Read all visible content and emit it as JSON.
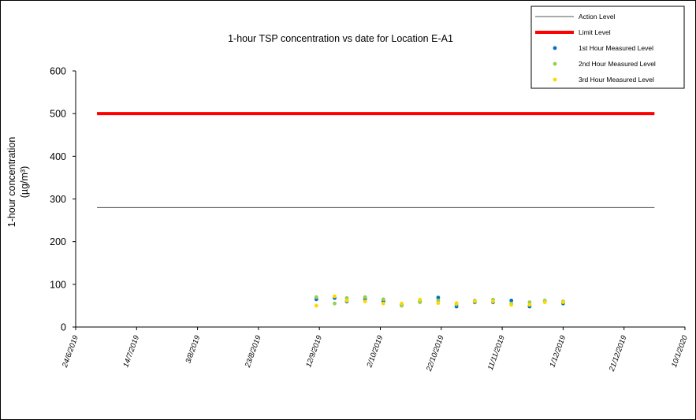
{
  "chart_data": {
    "type": "scatter",
    "title": "1-hour TSP concentration vs date for Location E-A1",
    "ylabel_line1": "1-hour concentration",
    "ylabel_line2": "(µg/m³)",
    "xlabel": "",
    "ylim": [
      0,
      600
    ],
    "yticks": [
      0,
      100,
      200,
      300,
      400,
      500,
      600
    ],
    "xlim": [
      "2019-06-24",
      "2020-01-10"
    ],
    "xticks": [
      {
        "date": "2019-06-24",
        "label": "24/6/2019"
      },
      {
        "date": "2019-07-14",
        "label": "14/7/2019"
      },
      {
        "date": "2019-08-03",
        "label": "3/8/2019"
      },
      {
        "date": "2019-08-23",
        "label": "23/8/2019"
      },
      {
        "date": "2019-09-12",
        "label": "12/9/2019"
      },
      {
        "date": "2019-10-02",
        "label": "2/10/2019"
      },
      {
        "date": "2019-10-22",
        "label": "22/10/2019"
      },
      {
        "date": "2019-11-11",
        "label": "11/11/2019"
      },
      {
        "date": "2019-12-01",
        "label": "1/12/2019"
      },
      {
        "date": "2019-12-21",
        "label": "21/12/2019"
      },
      {
        "date": "2020-01-10",
        "label": "10/1/2020"
      }
    ],
    "grid": false,
    "legend_position": "top-right",
    "series": [
      {
        "name": "Action Level",
        "kind": "line",
        "color": "#555555",
        "x": [
          "2019-07-01",
          "2019-12-31"
        ],
        "values": [
          280,
          280
        ]
      },
      {
        "name": "Limit Level",
        "kind": "line",
        "color": "#ff0000",
        "x": [
          "2019-07-01",
          "2019-12-31"
        ],
        "values": [
          500,
          500
        ]
      },
      {
        "name": "1st Hour Measured Level",
        "kind": "marker",
        "color": "#0070c0",
        "x": [
          "2019-09-11",
          "2019-09-17",
          "2019-09-21",
          "2019-09-27",
          "2019-10-03",
          "2019-10-09",
          "2019-10-15",
          "2019-10-21",
          "2019-10-27",
          "2019-11-02",
          "2019-11-08",
          "2019-11-14",
          "2019-11-20",
          "2019-11-25",
          "2019-12-01"
        ],
        "values": [
          65,
          68,
          60,
          65,
          60,
          52,
          60,
          69,
          48,
          58,
          58,
          62,
          48,
          60,
          55
        ]
      },
      {
        "name": "2nd Hour Measured Level",
        "kind": "marker",
        "color": "#92d050",
        "x": [
          "2019-09-11",
          "2019-09-17",
          "2019-09-21",
          "2019-09-27",
          "2019-10-03",
          "2019-10-09",
          "2019-10-15",
          "2019-10-21",
          "2019-10-27",
          "2019-11-02",
          "2019-11-08",
          "2019-11-14",
          "2019-11-20",
          "2019-11-25",
          "2019-12-01"
        ],
        "values": [
          70,
          55,
          68,
          70,
          65,
          50,
          58,
          62,
          53,
          62,
          64,
          55,
          58,
          62,
          60
        ]
      },
      {
        "name": "3rd Hour Measured Level",
        "kind": "marker",
        "color": "#ffd700",
        "x": [
          "2019-09-11",
          "2019-09-17",
          "2019-09-21",
          "2019-09-27",
          "2019-10-03",
          "2019-10-09",
          "2019-10-15",
          "2019-10-21",
          "2019-10-27",
          "2019-11-02",
          "2019-11-08",
          "2019-11-14",
          "2019-11-20",
          "2019-11-25",
          "2019-12-01"
        ],
        "values": [
          50,
          72,
          62,
          60,
          55,
          55,
          64,
          56,
          56,
          60,
          60,
          52,
          52,
          58,
          58
        ]
      }
    ]
  }
}
